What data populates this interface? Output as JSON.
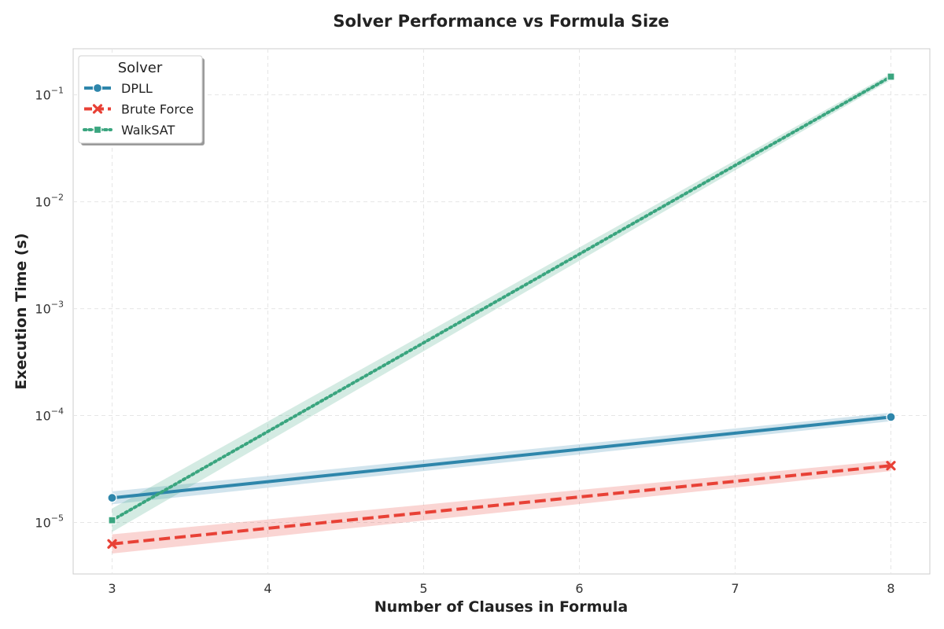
{
  "chart_data": {
    "type": "line",
    "title": "Solver Performance vs Formula Size",
    "xlabel": "Number of Clauses in Formula",
    "ylabel": "Execution Time (s)",
    "yscale": "log",
    "xlim": [
      2.75,
      8.25
    ],
    "ylim": [
      3.3e-06,
      0.27
    ],
    "x_ticks": [
      3,
      4,
      5,
      6,
      7,
      8
    ],
    "y_ticks": [
      {
        "value": 1e-05,
        "base": "10",
        "exp": "−5"
      },
      {
        "value": 0.0001,
        "base": "10",
        "exp": "−4"
      },
      {
        "value": 0.001,
        "base": "10",
        "exp": "−3"
      },
      {
        "value": 0.01,
        "base": "10",
        "exp": "−2"
      },
      {
        "value": 0.1,
        "base": "10",
        "exp": "−1"
      }
    ],
    "grid": true,
    "legend": {
      "title": "Solver",
      "placement": "top-left"
    },
    "series": [
      {
        "name": "DPLL",
        "color": "#2e86ab",
        "marker": "circle",
        "dash": "solid",
        "x": [
          3,
          8
        ],
        "y": [
          1.7e-05,
          9.7e-05
        ],
        "band": [
          0.06,
          0.04
        ]
      },
      {
        "name": "Brute Force",
        "color": "#e84136",
        "marker": "x",
        "dash": "dashed",
        "x": [
          3,
          8
        ],
        "y": [
          6.3e-06,
          3.4e-05
        ],
        "band": [
          0.09,
          0.05
        ]
      },
      {
        "name": "WalkSAT",
        "color": "#3aa57f",
        "marker": "square",
        "dash": "dotted",
        "x": [
          3,
          8
        ],
        "y": [
          1.05e-05,
          0.148
        ],
        "band": [
          0.11,
          0.03
        ]
      }
    ]
  }
}
